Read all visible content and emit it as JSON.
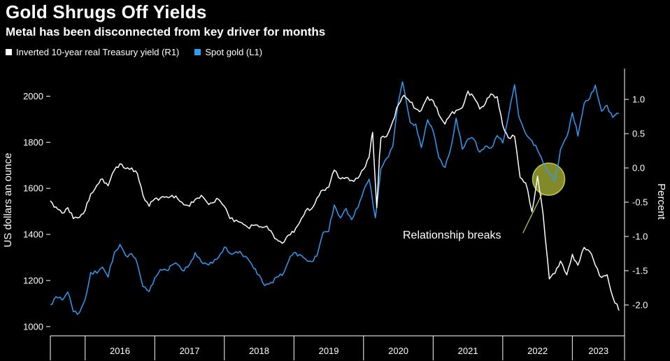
{
  "header": {
    "title": "Gold Shrugs Off Yields",
    "subtitle": "Metal has been disconnected from key driver for months"
  },
  "legend": [
    {
      "label": "Inverted 10-year real Treasury yield (R1)",
      "color": "#ffffff"
    },
    {
      "label": "Spot gold (L1)",
      "color": "#2f9cf4"
    }
  ],
  "colors": {
    "background": "#000000",
    "text": "#ffffff",
    "gold_line": "#2f9cf4",
    "yield_line": "#ffffff",
    "highlight": "#99a12f"
  },
  "chart_data": {
    "type": "line",
    "title": "Gold Shrugs Off Yields",
    "subtitle": "Metal has been disconnected from key driver for months",
    "grid": false,
    "legend_position": "top-left",
    "x_axis": {
      "ticks": [
        "2016",
        "2017",
        "2018",
        "2019",
        "2020",
        "2021",
        "2022",
        "2023"
      ],
      "range": [
        2015.5,
        2023.75
      ]
    },
    "left_axis": {
      "label": "US dollars an ounce",
      "ticks": [
        2000,
        1800,
        1600,
        1400,
        1200,
        1000
      ],
      "range": [
        960,
        2120
      ]
    },
    "right_axis": {
      "label": "Percent",
      "ticks": [
        "1.0",
        "0.5",
        "0.0",
        "-0.5",
        "-1.0",
        "-1.5",
        "-2.0"
      ],
      "range": [
        -2.45,
        1.45
      ]
    },
    "series": [
      {
        "name": "Spot gold (L1)",
        "axis": "left",
        "color": "#2f9cf4",
        "points": [
          [
            2015.5,
            1095
          ],
          [
            2015.58,
            1130
          ],
          [
            2015.67,
            1115
          ],
          [
            2015.75,
            1150
          ],
          [
            2015.83,
            1065
          ],
          [
            2015.92,
            1062
          ],
          [
            2016.0,
            1118
          ],
          [
            2016.08,
            1235
          ],
          [
            2016.17,
            1232
          ],
          [
            2016.25,
            1258
          ],
          [
            2016.33,
            1215
          ],
          [
            2016.42,
            1322
          ],
          [
            2016.5,
            1357
          ],
          [
            2016.58,
            1309
          ],
          [
            2016.67,
            1316
          ],
          [
            2016.75,
            1272
          ],
          [
            2016.83,
            1174
          ],
          [
            2016.92,
            1152
          ],
          [
            2017.0,
            1212
          ],
          [
            2017.08,
            1248
          ],
          [
            2017.17,
            1244
          ],
          [
            2017.25,
            1268
          ],
          [
            2017.33,
            1269
          ],
          [
            2017.42,
            1242
          ],
          [
            2017.5,
            1269
          ],
          [
            2017.58,
            1321
          ],
          [
            2017.67,
            1280
          ],
          [
            2017.75,
            1271
          ],
          [
            2017.83,
            1275
          ],
          [
            2017.92,
            1302
          ],
          [
            2018.0,
            1345
          ],
          [
            2018.08,
            1318
          ],
          [
            2018.17,
            1325
          ],
          [
            2018.25,
            1315
          ],
          [
            2018.33,
            1298
          ],
          [
            2018.42,
            1253
          ],
          [
            2018.5,
            1224
          ],
          [
            2018.58,
            1178
          ],
          [
            2018.67,
            1192
          ],
          [
            2018.75,
            1215
          ],
          [
            2018.83,
            1222
          ],
          [
            2018.92,
            1282
          ],
          [
            2019.0,
            1321
          ],
          [
            2019.08,
            1313
          ],
          [
            2019.17,
            1292
          ],
          [
            2019.25,
            1283
          ],
          [
            2019.33,
            1306
          ],
          [
            2019.42,
            1409
          ],
          [
            2019.5,
            1414
          ],
          [
            2019.58,
            1528
          ],
          [
            2019.67,
            1472
          ],
          [
            2019.75,
            1513
          ],
          [
            2019.83,
            1464
          ],
          [
            2019.92,
            1517
          ],
          [
            2020.0,
            1589
          ],
          [
            2020.08,
            1640
          ],
          [
            2020.17,
            1472
          ],
          [
            2020.25,
            1686
          ],
          [
            2020.33,
            1730
          ],
          [
            2020.42,
            1781
          ],
          [
            2020.5,
            1976
          ],
          [
            2020.56,
            2063
          ],
          [
            2020.67,
            1886
          ],
          [
            2020.75,
            1879
          ],
          [
            2020.83,
            1777
          ],
          [
            2020.92,
            1898
          ],
          [
            2021.0,
            1848
          ],
          [
            2021.08,
            1735
          ],
          [
            2021.17,
            1691
          ],
          [
            2021.25,
            1769
          ],
          [
            2021.33,
            1905
          ],
          [
            2021.42,
            1770
          ],
          [
            2021.5,
            1814
          ],
          [
            2021.58,
            1815
          ],
          [
            2021.67,
            1757
          ],
          [
            2021.75,
            1783
          ],
          [
            2021.83,
            1775
          ],
          [
            2021.92,
            1829
          ],
          [
            2022.0,
            1797
          ],
          [
            2022.08,
            1909
          ],
          [
            2022.17,
            2050
          ],
          [
            2022.22,
            1937
          ],
          [
            2022.25,
            1897
          ],
          [
            2022.33,
            1837
          ],
          [
            2022.42,
            1807
          ],
          [
            2022.5,
            1766
          ],
          [
            2022.58,
            1711
          ],
          [
            2022.67,
            1661
          ],
          [
            2022.75,
            1633
          ],
          [
            2022.83,
            1769
          ],
          [
            2022.92,
            1824
          ],
          [
            2023.0,
            1928
          ],
          [
            2023.08,
            1827
          ],
          [
            2023.17,
            1969
          ],
          [
            2023.25,
            1990
          ],
          [
            2023.33,
            2048
          ],
          [
            2023.42,
            1935
          ],
          [
            2023.5,
            1960
          ],
          [
            2023.58,
            1908
          ],
          [
            2023.67,
            1925
          ]
        ]
      },
      {
        "name": "Inverted 10-year real Treasury yield (R1)",
        "axis": "right",
        "color": "#ffffff",
        "points": [
          [
            2015.5,
            -0.48
          ],
          [
            2015.58,
            -0.57
          ],
          [
            2015.67,
            -0.66
          ],
          [
            2015.75,
            -0.58
          ],
          [
            2015.83,
            -0.74
          ],
          [
            2015.92,
            -0.72
          ],
          [
            2016.0,
            -0.62
          ],
          [
            2016.08,
            -0.38
          ],
          [
            2016.17,
            -0.25
          ],
          [
            2016.25,
            -0.16
          ],
          [
            2016.33,
            -0.26
          ],
          [
            2016.42,
            -0.03
          ],
          [
            2016.5,
            0.06
          ],
          [
            2016.58,
            -0.01
          ],
          [
            2016.67,
            0.0
          ],
          [
            2016.75,
            -0.08
          ],
          [
            2016.83,
            -0.4
          ],
          [
            2016.92,
            -0.56
          ],
          [
            2017.0,
            -0.45
          ],
          [
            2017.08,
            -0.44
          ],
          [
            2017.17,
            -0.42
          ],
          [
            2017.25,
            -0.4
          ],
          [
            2017.33,
            -0.45
          ],
          [
            2017.42,
            -0.54
          ],
          [
            2017.5,
            -0.56
          ],
          [
            2017.58,
            -0.46
          ],
          [
            2017.67,
            -0.4
          ],
          [
            2017.75,
            -0.5
          ],
          [
            2017.83,
            -0.51
          ],
          [
            2017.92,
            -0.46
          ],
          [
            2018.0,
            -0.56
          ],
          [
            2018.08,
            -0.74
          ],
          [
            2018.17,
            -0.76
          ],
          [
            2018.25,
            -0.8
          ],
          [
            2018.33,
            -0.86
          ],
          [
            2018.42,
            -0.84
          ],
          [
            2018.5,
            -0.86
          ],
          [
            2018.58,
            -0.86
          ],
          [
            2018.67,
            -0.92
          ],
          [
            2018.75,
            -1.04
          ],
          [
            2018.83,
            -1.1
          ],
          [
            2018.92,
            -0.98
          ],
          [
            2019.0,
            -0.94
          ],
          [
            2019.08,
            -0.8
          ],
          [
            2019.17,
            -0.62
          ],
          [
            2019.25,
            -0.6
          ],
          [
            2019.33,
            -0.44
          ],
          [
            2019.42,
            -0.32
          ],
          [
            2019.5,
            -0.28
          ],
          [
            2019.58,
            -0.03
          ],
          [
            2019.67,
            -0.16
          ],
          [
            2019.75,
            -0.14
          ],
          [
            2019.83,
            -0.18
          ],
          [
            2019.92,
            -0.15
          ],
          [
            2020.0,
            -0.02
          ],
          [
            2020.08,
            0.16
          ],
          [
            2020.13,
            0.52
          ],
          [
            2020.19,
            -0.58
          ],
          [
            2020.23,
            0.2
          ],
          [
            2020.25,
            0.44
          ],
          [
            2020.33,
            0.46
          ],
          [
            2020.42,
            0.68
          ],
          [
            2020.5,
            0.92
          ],
          [
            2020.58,
            1.06
          ],
          [
            2020.67,
            0.96
          ],
          [
            2020.75,
            0.86
          ],
          [
            2020.83,
            0.84
          ],
          [
            2020.92,
            1.04
          ],
          [
            2021.0,
            0.98
          ],
          [
            2021.08,
            0.78
          ],
          [
            2021.17,
            0.64
          ],
          [
            2021.25,
            0.78
          ],
          [
            2021.33,
            0.84
          ],
          [
            2021.42,
            0.88
          ],
          [
            2021.5,
            1.12
          ],
          [
            2021.58,
            1.04
          ],
          [
            2021.67,
            0.86
          ],
          [
            2021.75,
            0.94
          ],
          [
            2021.83,
            1.08
          ],
          [
            2021.92,
            1.04
          ],
          [
            2022.0,
            0.62
          ],
          [
            2022.08,
            0.44
          ],
          [
            2022.17,
            0.46
          ],
          [
            2022.25,
            -0.14
          ],
          [
            2022.33,
            -0.22
          ],
          [
            2022.42,
            -0.64
          ],
          [
            2022.5,
            -0.12
          ],
          [
            2022.58,
            -0.68
          ],
          [
            2022.67,
            -1.62
          ],
          [
            2022.75,
            -1.54
          ],
          [
            2022.83,
            -1.36
          ],
          [
            2022.92,
            -1.56
          ],
          [
            2023.0,
            -1.26
          ],
          [
            2023.08,
            -1.42
          ],
          [
            2023.17,
            -1.16
          ],
          [
            2023.25,
            -1.22
          ],
          [
            2023.33,
            -1.42
          ],
          [
            2023.42,
            -1.6
          ],
          [
            2023.5,
            -1.56
          ],
          [
            2023.58,
            -1.88
          ],
          [
            2023.67,
            -2.08
          ]
        ]
      }
    ],
    "annotation": {
      "text": "Relationship breaks",
      "t": 2022.66,
      "value_left": 1640,
      "radius": 23,
      "circle_fill": "#99a12f",
      "circle_stroke": "#c7d14a",
      "label_t": 2020.56,
      "label_value_left": 1382,
      "leader": [
        [
          2022.29,
          1406
        ],
        [
          2022.57,
          1580
        ]
      ]
    }
  }
}
